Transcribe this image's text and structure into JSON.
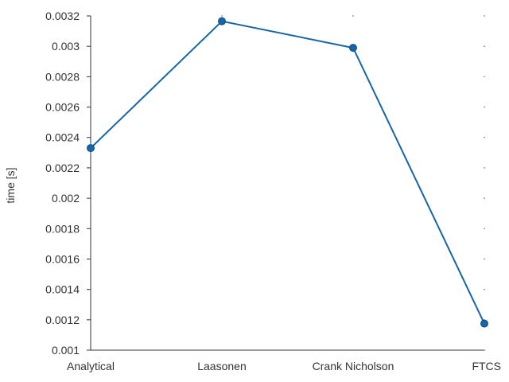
{
  "chart_data": {
    "type": "line",
    "categories": [
      "Analytical",
      "Laasonen",
      "Crank Nicholson",
      "FTCS"
    ],
    "series": [
      {
        "values": [
          0.00233,
          0.003165,
          0.00299,
          0.001175
        ]
      }
    ],
    "title": "",
    "xlabel": "",
    "ylabel": "time [s]",
    "ylim": [
      0.001,
      0.0032
    ],
    "yticks": [
      "0.001",
      "0.0012",
      "0.0014",
      "0.0016",
      "0.0018",
      "0.002",
      "0.0022",
      "0.0024",
      "0.0026",
      "0.0028",
      "0.003",
      "0.0032"
    ],
    "grid": false,
    "legend": "none",
    "colors": {
      "line": "#1565a8",
      "marker": "#1565a8",
      "axis": "#333333",
      "text": "#333333"
    }
  }
}
